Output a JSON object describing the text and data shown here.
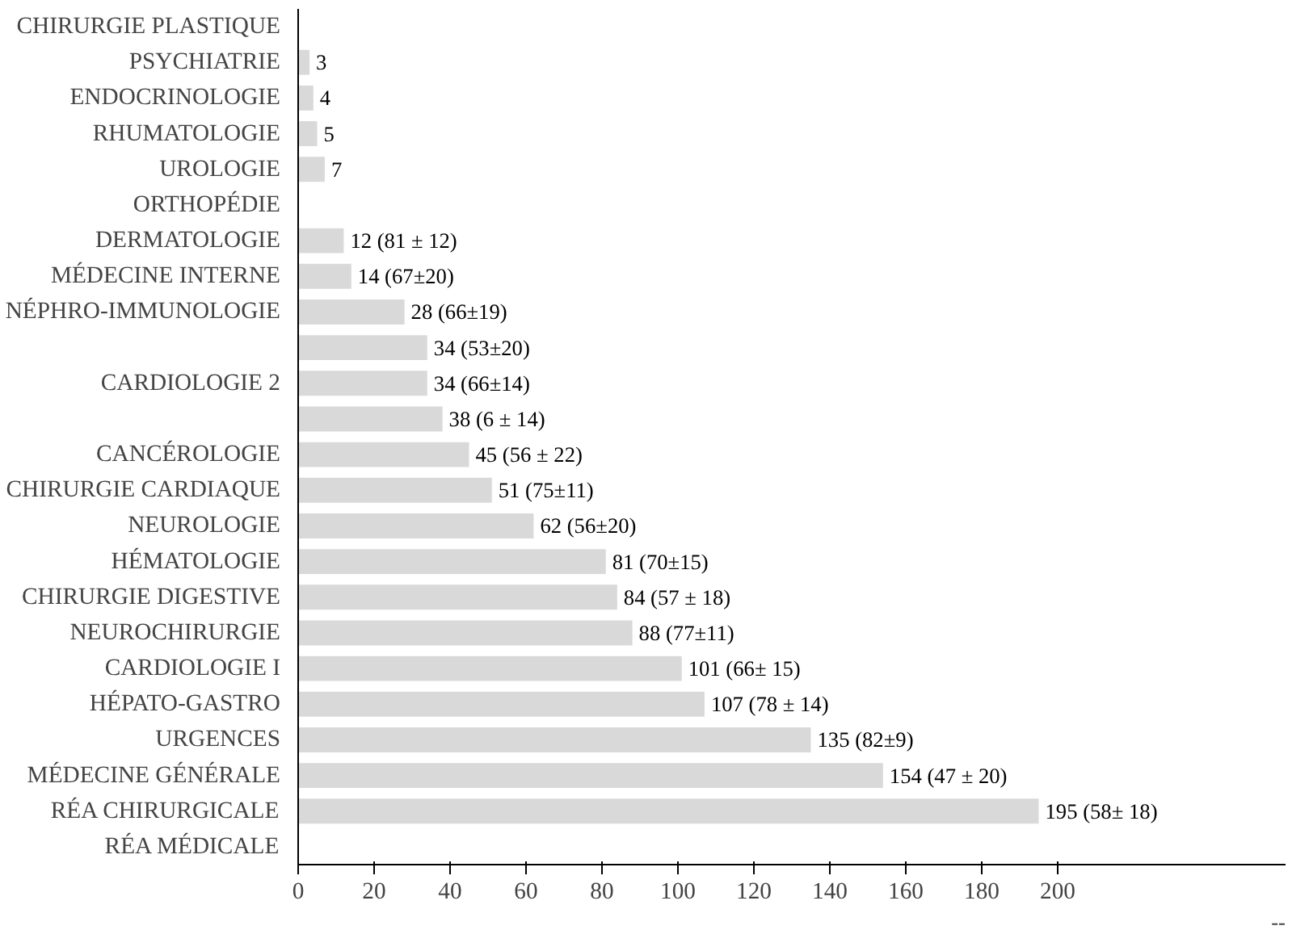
{
  "chart_data": {
    "type": "bar",
    "orientation": "horizontal",
    "categories": [
      "CHIRURGIE PLASTIQUE",
      "PSYCHIATRIE",
      "ENDOCRINOLOGIE",
      "RHUMATOLOGIE",
      "UROLOGIE",
      "ORTHOPÉDIE",
      "DERMATOLOGIE",
      "MÉDECINE INTERNE",
      "NÉPHRO-IMMUNOLOGIE",
      "CARDIOLOGIE 2",
      "CANCÉROLOGIE",
      "CHIRURGIE CARDIAQUE",
      "NEUROLOGIE",
      "HÉMATOLOGIE",
      "CHIRURGIE DIGESTIVE",
      "NEUROCHIRURGIE",
      "CARDIOLOGIE I",
      "HÉPATO-GASTRO",
      "URGENCES",
      "MÉDECINE GÉNÉRALE",
      "RÉA CHIRURGICALE",
      "RÉA MÉDICALE"
    ],
    "series": [
      {
        "color": "#d9d9d9",
        "values": [
          null,
          3,
          4,
          5,
          7,
          null,
          12,
          14,
          28,
          34,
          45,
          51,
          62,
          81,
          84,
          88,
          101,
          107,
          135,
          154,
          195,
          null
        ],
        "value_labels": [
          null,
          "3",
          "4",
          "5",
          "7",
          null,
          "12 (81 ± 12)",
          "14 (67±20)",
          "28 (66±19)",
          "34 (53±20)",
          "45 (56 ± 22)",
          "51 (75±11)",
          "62 (56±20)",
          "81 (70±15)",
          "84 (57 ± 18)",
          "88 (77±11)",
          "101 (66± 15)",
          "107 (78 ± 14)",
          "135 (82±9)",
          "154 (47 ± 20)",
          "195 (58± 18)",
          null
        ]
      },
      {
        "color": "#d9d9d9",
        "values": [
          null,
          null,
          null,
          null,
          null,
          null,
          null,
          null,
          null,
          34,
          null,
          null,
          null,
          null,
          null,
          null,
          null,
          null,
          null,
          null,
          null,
          null
        ],
        "value_labels": [
          null,
          null,
          null,
          null,
          null,
          null,
          null,
          null,
          null,
          "34 (66±14)",
          null,
          null,
          null,
          null,
          null,
          null,
          null,
          null,
          null,
          null,
          null,
          null
        ]
      },
      {
        "color": "#d9d9d9",
        "values": [
          null,
          null,
          null,
          null,
          null,
          null,
          null,
          null,
          null,
          38,
          null,
          null,
          null,
          null,
          null,
          null,
          null,
          null,
          null,
          null,
          null,
          null
        ],
        "value_labels": [
          null,
          null,
          null,
          null,
          null,
          null,
          null,
          null,
          null,
          "38 (6 ± 14)",
          null,
          null,
          null,
          null,
          null,
          null,
          null,
          null,
          null,
          null,
          null,
          null
        ]
      }
    ],
    "xlim": [
      0,
      260
    ],
    "xticks": [
      0,
      20,
      40,
      60,
      80,
      100,
      120,
      140,
      160,
      180,
      200
    ],
    "annotations": [
      "--"
    ]
  }
}
